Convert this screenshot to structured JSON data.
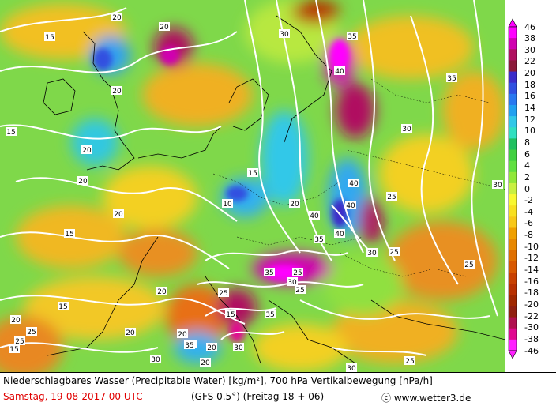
{
  "caption": {
    "line1": "Niederschlagbares Wasser (Precipitable Water) [kg/m²], 700 hPa Vertikalbewegung [hPa/h]",
    "date": "Samstag, 19-08-2017  00 UTC",
    "model": "(GFS 0.5°)  (Freitag 18 + 06)",
    "credit": "ⓒ www.wetter3.de"
  },
  "legend": {
    "labels": [
      "46",
      "38",
      "30",
      "22",
      "20",
      "18",
      "16",
      "14",
      "12",
      "10",
      "8",
      "6",
      "4",
      "2",
      "0",
      "-2",
      "-4",
      "-6",
      "-8",
      "-10",
      "-12",
      "-14",
      "-16",
      "-18",
      "-20",
      "-22",
      "-30",
      "-38",
      "-46"
    ],
    "colors": [
      "#ff00ff",
      "#d000b0",
      "#b01060",
      "#8b1a3a",
      "#3c2cc8",
      "#3050e0",
      "#2878f0",
      "#20a0f0",
      "#30c8e8",
      "#30e0c0",
      "#20c060",
      "#40d040",
      "#60e040",
      "#90e838",
      "#c8f040",
      "#f8f830",
      "#f8e020",
      "#f8c818",
      "#f0a000",
      "#e88800",
      "#e07000",
      "#d85800",
      "#c84000",
      "#b83000",
      "#a02800",
      "#902010",
      "#b01050",
      "#e00890",
      "#ff20ff"
    ]
  },
  "contour_labels": [
    "20",
    "15",
    "20",
    "20",
    "15",
    "20",
    "20",
    "25",
    "20",
    "15",
    "20",
    "15",
    "30",
    "35",
    "40",
    "35",
    "30",
    "40",
    "15",
    "10",
    "20",
    "25",
    "40",
    "40",
    "40",
    "35",
    "30",
    "25",
    "30",
    "25",
    "35",
    "30",
    "20",
    "25",
    "35",
    "20",
    "25",
    "20",
    "15",
    "20",
    "15",
    "30",
    "20",
    "25",
    "25",
    "30",
    "35",
    "25",
    "25",
    "30"
  ],
  "precip_field": {
    "units": "kg/m²",
    "contour_levels": [
      10,
      15,
      20,
      25,
      30,
      35,
      40
    ]
  },
  "vertical_motion": {
    "units": "hPa/h"
  }
}
